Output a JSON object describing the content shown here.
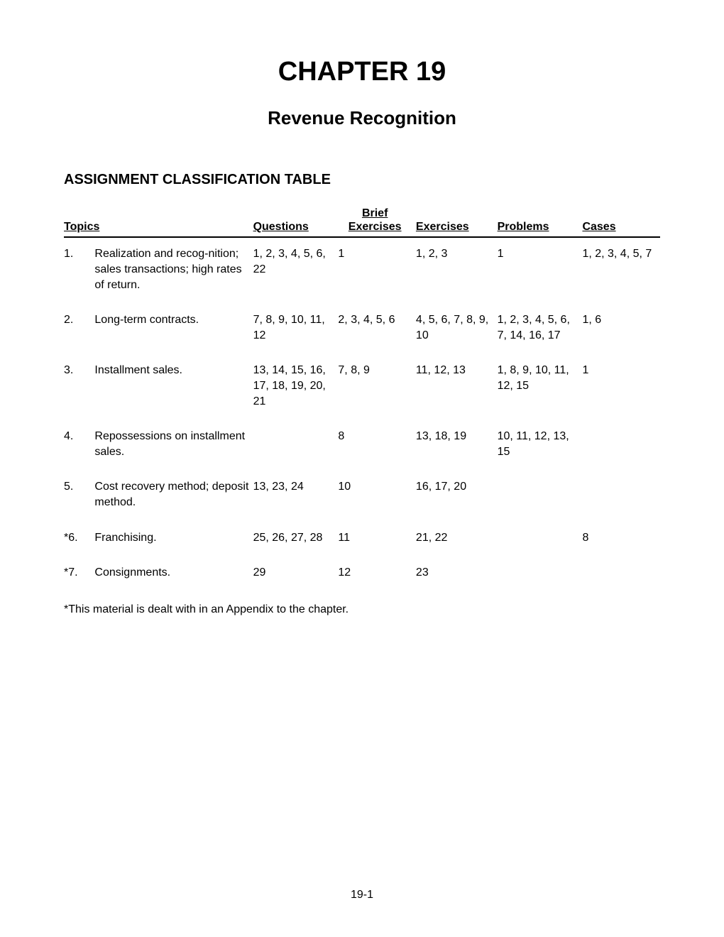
{
  "chapter": {
    "title": "CHAPTER 19",
    "subtitle": "Revenue Recognition"
  },
  "section_title": "ASSIGNMENT CLASSIFICATION TABLE",
  "table": {
    "headers": {
      "topics": "Topics",
      "questions": "Questions",
      "brief_ex1": "Brief",
      "brief_ex2": "Exercises",
      "exercises": "Exercises",
      "problems": "Problems",
      "cases": "Cases"
    },
    "rows": [
      {
        "num": "1.",
        "topic": "Realization and recog-nition; sales transactions; high rates of return.",
        "questions": "1, 2, 3, 4, 5, 6, 22",
        "brief_ex": "1",
        "exercises": "1, 2, 3",
        "problems": "1",
        "cases": "1, 2, 3, 4, 5, 7"
      },
      {
        "num": "2.",
        "topic": "Long-term contracts.",
        "questions": "7, 8, 9, 10, 11, 12",
        "brief_ex": "2, 3, 4, 5, 6",
        "exercises": "4, 5, 6, 7, 8, 9, 10",
        "problems": "1, 2, 3, 4, 5, 6, 7, 14, 16, 17",
        "cases": "1, 6"
      },
      {
        "num": "3.",
        "topic": "Installment sales.",
        "questions": "13, 14, 15, 16, 17, 18, 19, 20, 21",
        "brief_ex": "7, 8, 9",
        "exercises": "11, 12, 13",
        "problems": "1, 8, 9, 10, 11, 12, 15",
        "cases": "1"
      },
      {
        "num": "4.",
        "topic": "Repossessions on installment sales.",
        "questions": "",
        "brief_ex": "8",
        "exercises": "13, 18, 19",
        "problems": "10, 11, 12, 13, 15",
        "cases": ""
      },
      {
        "num": "5.",
        "topic": "Cost recovery method; deposit method.",
        "questions": "13, 23, 24",
        "brief_ex": "10",
        "exercises": "16, 17, 20",
        "problems": "",
        "cases": ""
      },
      {
        "num": "*6.",
        "topic": "Franchising.",
        "questions": "25, 26, 27, 28",
        "brief_ex": "11",
        "exercises": "21, 22",
        "problems": "",
        "cases": "8"
      },
      {
        "num": "*7.",
        "topic": "Consignments.",
        "questions": "29",
        "brief_ex": "12",
        "exercises": "23",
        "problems": "",
        "cases": ""
      }
    ]
  },
  "footnote": "*This material is dealt with in an Appendix to the chapter.",
  "page_number": "19-1"
}
